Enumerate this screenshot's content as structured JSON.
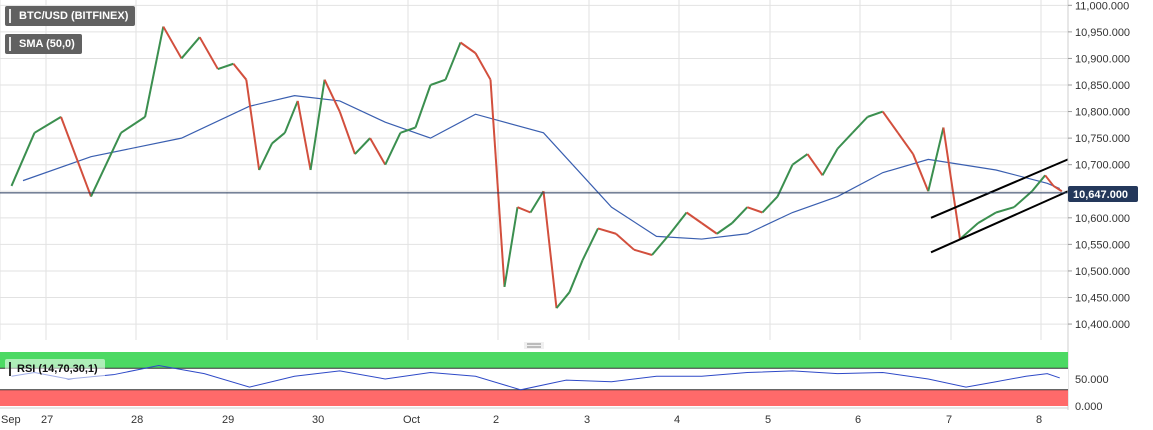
{
  "chart_data": {
    "type": "candlestick",
    "instrument_label": "BTC/USD (BITFINEX)",
    "indicator_label": "SMA (50,0)",
    "price_axis": {
      "ticks": [
        "11,000.000",
        "10,950.000",
        "10,900.000",
        "10,850.000",
        "10,800.000",
        "10,750.000",
        "10,700.000",
        "10,650.000",
        "10,600.000",
        "10,550.000",
        "10,500.000",
        "10,450.000",
        "10,400.000"
      ],
      "ylim": [
        10370,
        11010
      ]
    },
    "current_price": "10,647.000",
    "current_price_value": 10647,
    "x_labels": [
      "Sep",
      "27",
      "28",
      "29",
      "30",
      "Oct",
      "2",
      "3",
      "4",
      "5",
      "6",
      "7",
      "8"
    ],
    "price_path": [
      [
        "Sep 26",
        10660
      ],
      [
        "Sep 26",
        10760
      ],
      [
        "Sep 27",
        10790
      ],
      [
        "Sep 27",
        10640
      ],
      [
        "Sep 27",
        10760
      ],
      [
        "Sep 28",
        10790
      ],
      [
        "Sep 28",
        10960
      ],
      [
        "Sep 28",
        10900
      ],
      [
        "Sep 28",
        10940
      ],
      [
        "Sep 28",
        10880
      ],
      [
        "Sep 29",
        10890
      ],
      [
        "Sep 29",
        10860
      ],
      [
        "Sep 29",
        10690
      ],
      [
        "Sep 29",
        10740
      ],
      [
        "Sep 29",
        10760
      ],
      [
        "Sep 29",
        10820
      ],
      [
        "Sep 29",
        10690
      ],
      [
        "Sep 30",
        10860
      ],
      [
        "Sep 30",
        10800
      ],
      [
        "Sep 30",
        10720
      ],
      [
        "Sep 30",
        10750
      ],
      [
        "Sep 30",
        10700
      ],
      [
        "Sep 30",
        10760
      ],
      [
        "Oct 1",
        10770
      ],
      [
        "Oct 1",
        10850
      ],
      [
        "Oct 1",
        10860
      ],
      [
        "Oct 1",
        10930
      ],
      [
        "Oct 1",
        10910
      ],
      [
        "Oct 1",
        10860
      ],
      [
        "Oct 2",
        10470
      ],
      [
        "Oct 2",
        10620
      ],
      [
        "Oct 2",
        10610
      ],
      [
        "Oct 2",
        10650
      ],
      [
        "Oct 2",
        10430
      ],
      [
        "Oct 2",
        10460
      ],
      [
        "Oct 2",
        10520
      ],
      [
        "Oct 3",
        10580
      ],
      [
        "Oct 3",
        10570
      ],
      [
        "Oct 3",
        10540
      ],
      [
        "Oct 3",
        10530
      ],
      [
        "Oct 3",
        10570
      ],
      [
        "Oct 4",
        10610
      ],
      [
        "Oct 4",
        10590
      ],
      [
        "Oct 4",
        10570
      ],
      [
        "Oct 4",
        10590
      ],
      [
        "Oct 4",
        10620
      ],
      [
        "Oct 4",
        10610
      ],
      [
        "Oct 5",
        10640
      ],
      [
        "Oct 5",
        10700
      ],
      [
        "Oct 5",
        10720
      ],
      [
        "Oct 5",
        10680
      ],
      [
        "Oct 5",
        10730
      ],
      [
        "Oct 5",
        10760
      ],
      [
        "Oct 6",
        10790
      ],
      [
        "Oct 6",
        10800
      ],
      [
        "Oct 6",
        10760
      ],
      [
        "Oct 6",
        10720
      ],
      [
        "Oct 6",
        10650
      ],
      [
        "Oct 6",
        10770
      ],
      [
        "Oct 7",
        10560
      ],
      [
        "Oct 7",
        10590
      ],
      [
        "Oct 7",
        10610
      ],
      [
        "Oct 7",
        10620
      ],
      [
        "Oct 7",
        10650
      ],
      [
        "Oct 8",
        10680
      ],
      [
        "Oct 8",
        10660
      ],
      [
        "Oct 8",
        10650
      ]
    ],
    "sma_path": [
      [
        "Sep 26",
        10670
      ],
      [
        "Sep 27",
        10715
      ],
      [
        "Sep 28",
        10750
      ],
      [
        "Sep 29",
        10810
      ],
      [
        "Sep 29",
        10830
      ],
      [
        "Sep 30",
        10820
      ],
      [
        "Sep 30",
        10780
      ],
      [
        "Oct 1",
        10750
      ],
      [
        "Oct 1",
        10795
      ],
      [
        "Oct 2",
        10760
      ],
      [
        "Oct 3",
        10620
      ],
      [
        "Oct 3",
        10565
      ],
      [
        "Oct 4",
        10560
      ],
      [
        "Oct 4",
        10570
      ],
      [
        "Oct 5",
        10610
      ],
      [
        "Oct 5",
        10640
      ],
      [
        "Oct 6",
        10685
      ],
      [
        "Oct 6",
        10710
      ],
      [
        "Oct 7",
        10690
      ],
      [
        "Oct 8",
        10665
      ],
      [
        "Oct 8",
        10655
      ]
    ],
    "channel": {
      "upper": [
        [
          "Oct 7",
          10600
        ],
        [
          "Oct 8",
          10710
        ]
      ],
      "lower": [
        [
          "Oct 7",
          10535
        ],
        [
          "Oct 8",
          10650
        ]
      ]
    },
    "rsi": {
      "label": "RSI (14,70,30,1)",
      "ticks": [
        "50.000",
        "0.000"
      ],
      "overbought": 70,
      "oversold": 30,
      "path": [
        [
          "Sep 26",
          55
        ],
        [
          "Sep 26",
          62
        ],
        [
          "Sep 27",
          50
        ],
        [
          "Sep 27",
          58
        ],
        [
          "Sep 28",
          75
        ],
        [
          "Sep 28",
          60
        ],
        [
          "Sep 29",
          35
        ],
        [
          "Sep 29",
          55
        ],
        [
          "Sep 30",
          65
        ],
        [
          "Sep 30",
          50
        ],
        [
          "Oct 1",
          62
        ],
        [
          "Oct 1",
          55
        ],
        [
          "Oct 2",
          30
        ],
        [
          "Oct 2",
          48
        ],
        [
          "Oct 3",
          45
        ],
        [
          "Oct 3",
          55
        ],
        [
          "Oct 4",
          55
        ],
        [
          "Oct 4",
          62
        ],
        [
          "Oct 5",
          65
        ],
        [
          "Oct 5",
          60
        ],
        [
          "Oct 6",
          62
        ],
        [
          "Oct 6",
          50
        ],
        [
          "Oct 7",
          35
        ],
        [
          "Oct 7",
          45
        ],
        [
          "Oct 7",
          55
        ],
        [
          "Oct 8",
          60
        ],
        [
          "Oct 8",
          52
        ]
      ]
    }
  },
  "colors": {
    "up": "#3b8f4f",
    "down": "#d24f3d",
    "sma": "#3a5fb0",
    "rsi_line": "#2e49c7",
    "overbought_fill": "#4cd963",
    "oversold_fill": "#ff6a6a",
    "price_tag_bg": "#24385b",
    "grid": "#e2e2e2",
    "label_bg": "#616161"
  }
}
